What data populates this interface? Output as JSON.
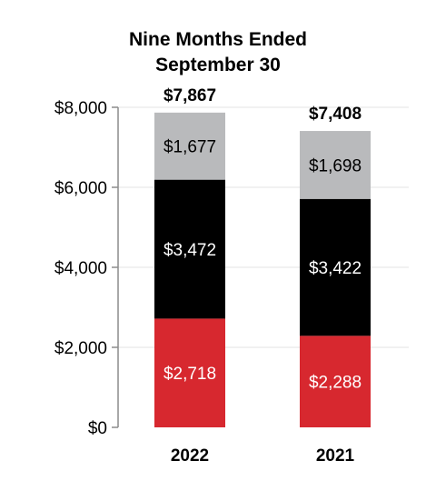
{
  "chart_data": {
    "type": "bar",
    "stacked": true,
    "title": [
      "Nine Months Ended",
      "September 30"
    ],
    "xlabel": "",
    "ylabel": "",
    "categories": [
      "2022",
      "2021"
    ],
    "ylim": [
      0,
      8000
    ],
    "yticks": [
      0,
      2000,
      4000,
      6000,
      8000
    ],
    "ytick_labels": [
      "$0",
      "$2,000",
      "$4,000",
      "$6,000",
      "$8,000"
    ],
    "grid": true,
    "series": [
      {
        "values": [
          2718,
          2288
        ],
        "labels": [
          "$2,718",
          "$2,288"
        ],
        "color": "#d7282f",
        "label_color": "#ffffff"
      },
      {
        "values": [
          3472,
          3422
        ],
        "labels": [
          "$3,472",
          "$3,422"
        ],
        "color": "#000000",
        "label_color": "#ffffff"
      },
      {
        "values": [
          1677,
          1698
        ],
        "labels": [
          "$1,677",
          "$1,698"
        ],
        "color": "#b9babc",
        "label_color": "#000000"
      }
    ],
    "totals": [
      7867,
      7408
    ],
    "total_labels": [
      "$7,867",
      "$7,408"
    ]
  }
}
